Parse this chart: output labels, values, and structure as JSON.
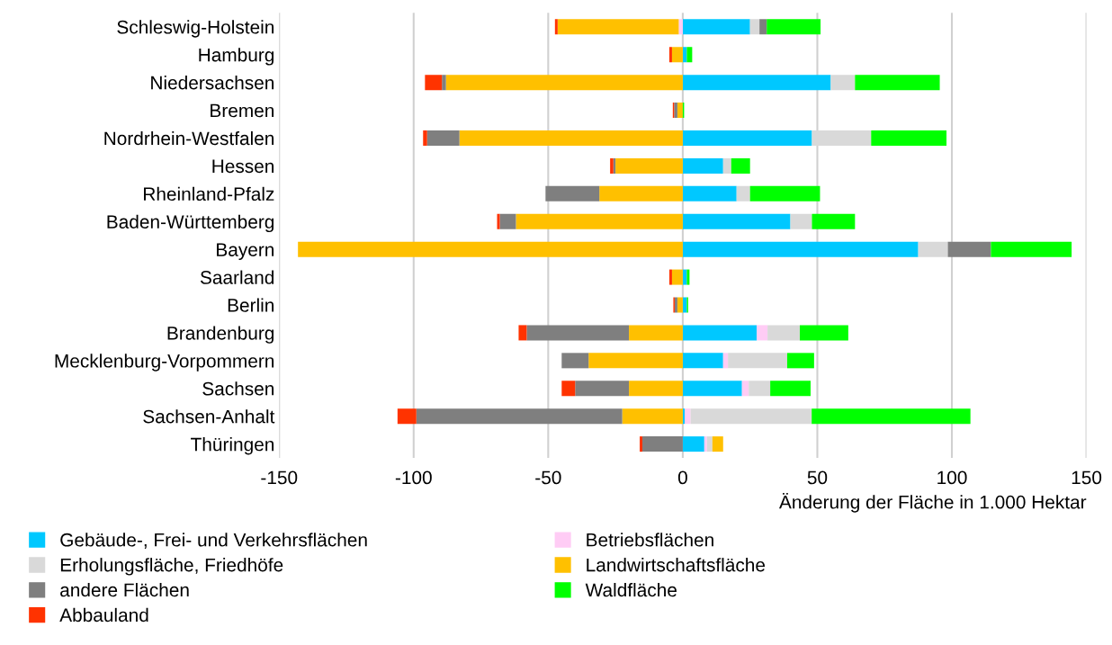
{
  "chart_data": {
    "type": "bar",
    "orientation": "horizontal",
    "stacked": true,
    "categories": [
      "Schleswig-Holstein",
      "Hamburg",
      "Niedersachsen",
      "Bremen",
      "Nordrhein-Westfalen",
      "Hessen",
      "Rheinland-Pfalz",
      "Baden-Württemberg",
      "Bayern",
      "Saarland",
      "Berlin",
      "Brandenburg",
      "Mecklenburg-Vorpommern",
      "Sachsen",
      "Sachsen-Anhalt",
      "Thüringen"
    ],
    "series": [
      {
        "name": "Gebäude-, Frei- und Verkehrsflächen",
        "color": "#00c8ff",
        "values": [
          25,
          1.5,
          55,
          0,
          48,
          15,
          20,
          40,
          87.5,
          1.5,
          1.5,
          27.5,
          15,
          22,
          0.7,
          8
        ]
      },
      {
        "name": "Betriebsflächen",
        "color": "#ffccf5",
        "values": [
          -1.5,
          0,
          0,
          0,
          0,
          0,
          0,
          0,
          0,
          0,
          0,
          4,
          1.8,
          2.5,
          2.2,
          1
        ]
      },
      {
        "name": "Erholungsfläche, Friedhöfe",
        "color": "#d9d9d9",
        "values": [
          3.5,
          null,
          9,
          null,
          22,
          3,
          5,
          8,
          11,
          0,
          0,
          12,
          22,
          8,
          45,
          2
        ]
      },
      {
        "name": "Landwirtschaftsfläche",
        "color": "#ffc000",
        "values": [
          -45,
          -4,
          -88,
          -2,
          -83,
          -25,
          -31,
          -62,
          -143,
          -4,
          -2,
          -20,
          -35,
          -20,
          -22.5,
          4
        ]
      },
      {
        "name": "andere Flächen",
        "color": "#7f7f7f",
        "values": [
          2.7,
          0,
          -1.5,
          -1.2,
          -12,
          -0.8,
          -20,
          -6,
          16,
          0,
          -1,
          -38,
          -10,
          -20,
          -76.5,
          -15
        ]
      },
      {
        "name": "Waldfläche",
        "color": "#00ff00",
        "values": [
          20,
          2,
          31.5,
          0.5,
          28,
          7,
          26,
          16,
          30,
          1,
          0.5,
          18,
          10,
          15,
          59,
          0
        ]
      },
      {
        "name": "Abbauland",
        "color": "#ff3300",
        "values": [
          -1,
          -1,
          -6.3,
          -0.5,
          -1.5,
          -1.2,
          0,
          -1,
          0,
          -1,
          -0.5,
          -3,
          0,
          -5,
          -7,
          -1
        ]
      }
    ],
    "xlim": [
      -150,
      150
    ],
    "xticks": [
      -150,
      -100,
      -50,
      0,
      50,
      100,
      150
    ],
    "xlabel": "Änderung der Fläche in 1.000 Hektar",
    "grid": "x",
    "legend": "bottom"
  }
}
